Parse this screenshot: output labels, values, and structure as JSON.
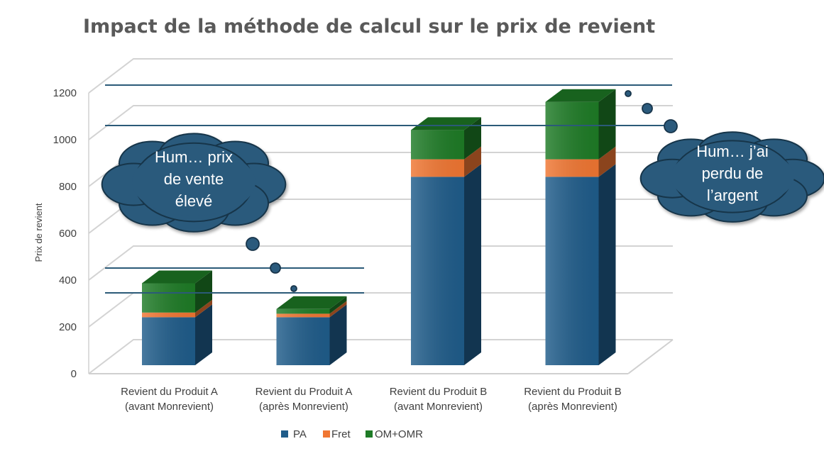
{
  "chart_data": {
    "type": "bar",
    "stacked": true,
    "three_d": true,
    "title": "Impact de la méthode de calcul sur le prix de revient",
    "ylabel": "Prix de revient",
    "ylim": [
      0,
      1200
    ],
    "yticks": [
      0,
      200,
      400,
      600,
      800,
      1000,
      1200
    ],
    "grid": true,
    "legend_position": "bottom",
    "categories": [
      [
        "Revient du Produit A",
        "(avant Monrevient)"
      ],
      [
        "Revient du Produit A",
        "(après Monrevient)"
      ],
      [
        "Revient du Produit B",
        "(avant Monrevient)"
      ],
      [
        "Revient du Produit B",
        "(après Monrevient)"
      ]
    ],
    "series": [
      {
        "name": "PA",
        "color": "#1f5c8a",
        "values": [
          205,
          205,
          805,
          805
        ]
      },
      {
        "name": "Fret",
        "color": "#f07632",
        "values": [
          20,
          15,
          75,
          75
        ]
      },
      {
        "name": "OM+OMR",
        "color": "#1e7b26",
        "values": [
          125,
          20,
          125,
          245
        ]
      }
    ],
    "annotations": [
      {
        "text": [
          "Hum… prix",
          "de vente",
          "élevé"
        ]
      },
      {
        "text": [
          "Hum… j’ai",
          "perdu de",
          "l’argent"
        ]
      }
    ]
  }
}
